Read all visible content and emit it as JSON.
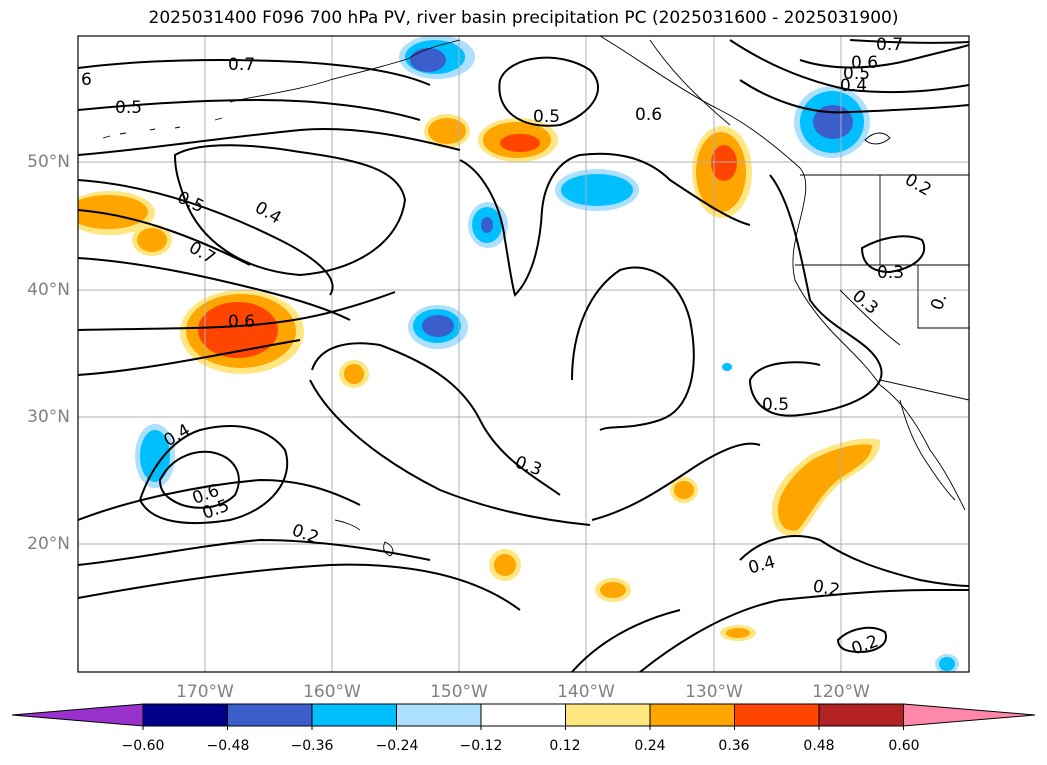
{
  "title": "2025031400 F096 700 hPa PV, river basin precipitation PC (2025031600 - 2025031900)",
  "lat_labels": [
    "50°N",
    "40°N",
    "30°N",
    "20°N"
  ],
  "lon_labels": [
    "170°W",
    "160°W",
    "150°W",
    "140°W",
    "130°W",
    "120°W"
  ],
  "colorbar": {
    "ticks": [
      "−0.60",
      "−0.48",
      "−0.36",
      "−0.24",
      "−0.12",
      "0.12",
      "0.24",
      "0.36",
      "0.48",
      "0.60"
    ],
    "colors": [
      "#9932CC",
      "#00008B",
      "#3A5FCD",
      "#00BFFF",
      "#ADDFFF",
      "#FFFFFF",
      "#FFE680",
      "#FFA500",
      "#FF4500",
      "#B22222",
      "#FF88AA"
    ]
  },
  "contour_labels": [
    "6",
    "0.7",
    "0.5",
    "0.5",
    "0.4",
    "0.7",
    "0.6",
    "0.4",
    "0.6",
    "0.5",
    "0.3",
    "0.2",
    "0.5",
    "0.6",
    "0.7",
    "0.6",
    "0.5",
    "0.4",
    "0.2",
    "0.3",
    "0.3",
    "0.5",
    "0.4",
    "0.2",
    "0.2",
    "0."
  ]
}
